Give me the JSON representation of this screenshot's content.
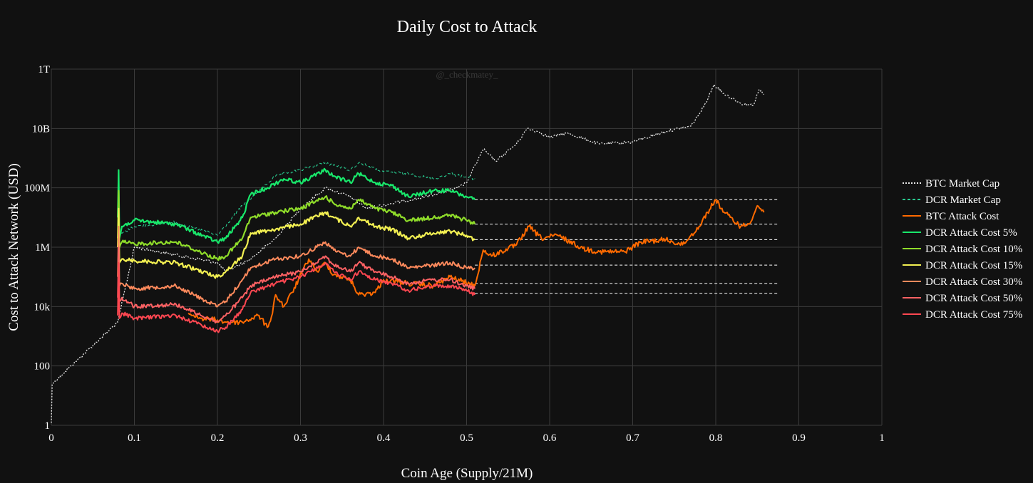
{
  "chart_data": {
    "type": "line",
    "title": "Daily Cost to Attack",
    "xlabel": "Coin Age (Supply/21M)",
    "ylabel": "Cost to Attack Network (USD)",
    "watermark": "@_checkmatey_",
    "xlim": [
      0,
      1
    ],
    "ylim": [
      1,
      1000000000000
    ],
    "y_scale": "log",
    "grid": true,
    "legend_position": "right",
    "x_ticks": [
      {
        "v": 0,
        "label": "0"
      },
      {
        "v": 0.1,
        "label": "0.1"
      },
      {
        "v": 0.2,
        "label": "0.2"
      },
      {
        "v": 0.3,
        "label": "0.3"
      },
      {
        "v": 0.4,
        "label": "0.4"
      },
      {
        "v": 0.5,
        "label": "0.5"
      },
      {
        "v": 0.6,
        "label": "0.6"
      },
      {
        "v": 0.7,
        "label": "0.7"
      },
      {
        "v": 0.8,
        "label": "0.8"
      },
      {
        "v": 0.9,
        "label": "0.9"
      },
      {
        "v": 1,
        "label": "1"
      }
    ],
    "y_ticks": [
      {
        "v": 1,
        "label": "1"
      },
      {
        "v": 100,
        "label": "100"
      },
      {
        "v": 10000,
        "label": "10k"
      },
      {
        "v": 1000000,
        "label": "1M"
      },
      {
        "v": 100000000,
        "label": "100M"
      },
      {
        "v": 10000000000,
        "label": "10B"
      },
      {
        "v": 1000000000000,
        "label": "1T"
      }
    ],
    "series": [
      {
        "name": "BTC Market Cap",
        "color": "#e8e8e8",
        "dash": "dot",
        "width": 1.3,
        "noise": 0.05,
        "points": [
          [
            0.0,
            1.2
          ],
          [
            0.001,
            25
          ],
          [
            0.08,
            3000
          ],
          [
            0.1,
            1000000
          ],
          [
            0.2,
            300000
          ],
          [
            0.21,
            150000
          ],
          [
            0.24,
            400000
          ],
          [
            0.27,
            2000000
          ],
          [
            0.3,
            20000000
          ],
          [
            0.33,
            100000000
          ],
          [
            0.36,
            50000000
          ],
          [
            0.38,
            20000000
          ],
          [
            0.41,
            30000000
          ],
          [
            0.45,
            50000000
          ],
          [
            0.49,
            100000000
          ],
          [
            0.5,
            150000000
          ],
          [
            0.52,
            2000000000
          ],
          [
            0.535,
            800000000
          ],
          [
            0.56,
            3000000000
          ],
          [
            0.573,
            10000000000
          ],
          [
            0.585,
            8000000000
          ],
          [
            0.6,
            5000000000
          ],
          [
            0.62,
            7000000000
          ],
          [
            0.66,
            3000000000
          ],
          [
            0.7,
            3500000000
          ],
          [
            0.74,
            8000000000
          ],
          [
            0.77,
            12000000000
          ],
          [
            0.785,
            50000000000
          ],
          [
            0.798,
            300000000000
          ],
          [
            0.81,
            150000000000
          ],
          [
            0.83,
            70000000000
          ],
          [
            0.845,
            60000000000
          ],
          [
            0.852,
            200000000000
          ],
          [
            0.858,
            140000000000
          ]
        ]
      },
      {
        "name": "DCR Market Cap",
        "color": "#29c98f",
        "dash": "dash",
        "width": 1.1,
        "noise": 0.05,
        "points": [
          [
            0.08,
            2500000
          ],
          [
            0.1,
            5000000
          ],
          [
            0.15,
            7000000
          ],
          [
            0.2,
            2500000
          ],
          [
            0.23,
            25000000
          ],
          [
            0.27,
            250000000
          ],
          [
            0.3,
            400000000
          ],
          [
            0.33,
            700000000
          ],
          [
            0.36,
            400000000
          ],
          [
            0.37,
            700000000
          ],
          [
            0.4,
            350000000
          ],
          [
            0.43,
            300000000
          ],
          [
            0.46,
            200000000
          ],
          [
            0.48,
            300000000
          ],
          [
            0.51,
            200000000
          ]
        ]
      },
      {
        "name": "BTC Attack Cost",
        "color": "#ff6a00",
        "dash": "solid",
        "width": 2.0,
        "noise": 0.09,
        "points": [
          [
            0.165,
            6000
          ],
          [
            0.18,
            4000
          ],
          [
            0.2,
            3500
          ],
          [
            0.21,
            3000
          ],
          [
            0.23,
            3000
          ],
          [
            0.25,
            5000
          ],
          [
            0.26,
            2000
          ],
          [
            0.265,
            4500
          ],
          [
            0.27,
            25000
          ],
          [
            0.28,
            10000
          ],
          [
            0.29,
            30000
          ],
          [
            0.31,
            400000
          ],
          [
            0.32,
            150000
          ],
          [
            0.33,
            300000
          ],
          [
            0.34,
            120000
          ],
          [
            0.36,
            80000
          ],
          [
            0.37,
            25000
          ],
          [
            0.39,
            30000
          ],
          [
            0.4,
            80000
          ],
          [
            0.43,
            60000
          ],
          [
            0.46,
            50000
          ],
          [
            0.48,
            100000
          ],
          [
            0.51,
            50000
          ],
          [
            0.52,
            800000
          ],
          [
            0.53,
            500000
          ],
          [
            0.55,
            900000
          ],
          [
            0.56,
            1200000
          ],
          [
            0.575,
            5000000
          ],
          [
            0.59,
            2000000
          ],
          [
            0.61,
            2500000
          ],
          [
            0.64,
            900000
          ],
          [
            0.66,
            700000
          ],
          [
            0.69,
            700000
          ],
          [
            0.71,
            1500000
          ],
          [
            0.74,
            1800000
          ],
          [
            0.76,
            1200000
          ],
          [
            0.78,
            5000000
          ],
          [
            0.79,
            15000000
          ],
          [
            0.8,
            40000000
          ],
          [
            0.81,
            15000000
          ],
          [
            0.83,
            5000000
          ],
          [
            0.84,
            6000000
          ],
          [
            0.85,
            25000000
          ],
          [
            0.858,
            15000000
          ]
        ]
      },
      {
        "name": "DCR Attack Cost 5%",
        "color": "#19e86b",
        "dash": "solid",
        "width": 2.2,
        "noise": 0.07,
        "points": [
          [
            0.08,
            10000000
          ],
          [
            0.081,
            400000000
          ],
          [
            0.082,
            2000000
          ],
          [
            0.085,
            5000000
          ],
          [
            0.1,
            8000000
          ],
          [
            0.15,
            6000000
          ],
          [
            0.2,
            1500000
          ],
          [
            0.21,
            2000000
          ],
          [
            0.23,
            10000000
          ],
          [
            0.24,
            60000000
          ],
          [
            0.26,
            100000000
          ],
          [
            0.28,
            200000000
          ],
          [
            0.3,
            150000000
          ],
          [
            0.33,
            400000000
          ],
          [
            0.34,
            250000000
          ],
          [
            0.36,
            150000000
          ],
          [
            0.37,
            300000000
          ],
          [
            0.39,
            150000000
          ],
          [
            0.41,
            120000000
          ],
          [
            0.43,
            50000000
          ],
          [
            0.46,
            80000000
          ],
          [
            0.48,
            80000000
          ],
          [
            0.5,
            50000000
          ],
          [
            0.51,
            40000000
          ]
        ]
      },
      {
        "name": "DCR Attack Cost 10%",
        "color": "#8fdc2a",
        "dash": "solid",
        "width": 2.2,
        "noise": 0.07,
        "points": [
          [
            0.08,
            2000000
          ],
          [
            0.081,
            80000000
          ],
          [
            0.082,
            1000000
          ],
          [
            0.085,
            1500000
          ],
          [
            0.1,
            1300000
          ],
          [
            0.15,
            1500000
          ],
          [
            0.2,
            400000
          ],
          [
            0.21,
            500000
          ],
          [
            0.23,
            2000000
          ],
          [
            0.24,
            10000000
          ],
          [
            0.27,
            15000000
          ],
          [
            0.3,
            20000000
          ],
          [
            0.33,
            50000000
          ],
          [
            0.34,
            30000000
          ],
          [
            0.36,
            20000000
          ],
          [
            0.37,
            40000000
          ],
          [
            0.39,
            20000000
          ],
          [
            0.41,
            15000000
          ],
          [
            0.43,
            8000000
          ],
          [
            0.46,
            10000000
          ],
          [
            0.48,
            12000000
          ],
          [
            0.5,
            8000000
          ],
          [
            0.51,
            6000000
          ]
        ]
      },
      {
        "name": "DCR Attack Cost 15%",
        "color": "#f3f052",
        "dash": "solid",
        "width": 2.2,
        "noise": 0.07,
        "points": [
          [
            0.08,
            1000000
          ],
          [
            0.081,
            20000000
          ],
          [
            0.082,
            300000
          ],
          [
            0.085,
            400000
          ],
          [
            0.1,
            350000
          ],
          [
            0.15,
            300000
          ],
          [
            0.2,
            100000
          ],
          [
            0.21,
            150000
          ],
          [
            0.23,
            500000
          ],
          [
            0.24,
            3000000
          ],
          [
            0.27,
            4000000
          ],
          [
            0.3,
            6000000
          ],
          [
            0.33,
            15000000
          ],
          [
            0.34,
            10000000
          ],
          [
            0.36,
            5000000
          ],
          [
            0.37,
            10000000
          ],
          [
            0.39,
            5000000
          ],
          [
            0.41,
            4000000
          ],
          [
            0.43,
            2000000
          ],
          [
            0.46,
            3000000
          ],
          [
            0.48,
            3500000
          ],
          [
            0.5,
            2500000
          ],
          [
            0.51,
            1800000
          ]
        ]
      },
      {
        "name": "DCR Attack Cost 30%",
        "color": "#ff8a5c",
        "dash": "solid",
        "width": 2.0,
        "noise": 0.07,
        "points": [
          [
            0.08,
            100000
          ],
          [
            0.081,
            5000000
          ],
          [
            0.082,
            50000
          ],
          [
            0.085,
            60000
          ],
          [
            0.1,
            40000
          ],
          [
            0.15,
            50000
          ],
          [
            0.2,
            10000
          ],
          [
            0.21,
            15000
          ],
          [
            0.23,
            80000
          ],
          [
            0.24,
            200000
          ],
          [
            0.27,
            400000
          ],
          [
            0.3,
            500000
          ],
          [
            0.33,
            1500000
          ],
          [
            0.34,
            800000
          ],
          [
            0.36,
            500000
          ],
          [
            0.37,
            1000000
          ],
          [
            0.39,
            500000
          ],
          [
            0.41,
            400000
          ],
          [
            0.43,
            200000
          ],
          [
            0.46,
            250000
          ],
          [
            0.48,
            300000
          ],
          [
            0.5,
            200000
          ],
          [
            0.51,
            200000
          ]
        ]
      },
      {
        "name": "DCR Attack Cost 50%",
        "color": "#ff6264",
        "dash": "solid",
        "width": 2.0,
        "noise": 0.07,
        "points": [
          [
            0.08,
            20000
          ],
          [
            0.081,
            1000000
          ],
          [
            0.082,
            15000
          ],
          [
            0.085,
            20000
          ],
          [
            0.1,
            10000
          ],
          [
            0.15,
            12000
          ],
          [
            0.2,
            3000
          ],
          [
            0.21,
            5000
          ],
          [
            0.23,
            20000
          ],
          [
            0.24,
            50000
          ],
          [
            0.27,
            100000
          ],
          [
            0.3,
            150000
          ],
          [
            0.33,
            500000
          ],
          [
            0.34,
            250000
          ],
          [
            0.36,
            150000
          ],
          [
            0.37,
            300000
          ],
          [
            0.39,
            150000
          ],
          [
            0.41,
            100000
          ],
          [
            0.43,
            60000
          ],
          [
            0.46,
            80000
          ],
          [
            0.48,
            80000
          ],
          [
            0.5,
            50000
          ],
          [
            0.51,
            40000
          ]
        ]
      },
      {
        "name": "DCR Attack Cost 75%",
        "color": "#ff4751",
        "dash": "solid",
        "width": 2.0,
        "noise": 0.07,
        "points": [
          [
            0.08,
            5000
          ],
          [
            0.081,
            300000
          ],
          [
            0.082,
            4000
          ],
          [
            0.085,
            6000
          ],
          [
            0.1,
            4000
          ],
          [
            0.15,
            5000
          ],
          [
            0.2,
            1500
          ],
          [
            0.21,
            2000
          ],
          [
            0.23,
            8000
          ],
          [
            0.24,
            30000
          ],
          [
            0.27,
            60000
          ],
          [
            0.3,
            100000
          ],
          [
            0.33,
            300000
          ],
          [
            0.34,
            150000
          ],
          [
            0.36,
            80000
          ],
          [
            0.37,
            150000
          ],
          [
            0.39,
            80000
          ],
          [
            0.41,
            60000
          ],
          [
            0.43,
            35000
          ],
          [
            0.46,
            50000
          ],
          [
            0.48,
            50000
          ],
          [
            0.5,
            35000
          ],
          [
            0.51,
            25000
          ]
        ]
      }
    ],
    "reference_lines": [
      {
        "y": 40000000,
        "x0": 0.51,
        "x1": 0.875
      },
      {
        "y": 6000000,
        "x0": 0.51,
        "x1": 0.875
      },
      {
        "y": 1800000,
        "x0": 0.51,
        "x1": 0.875
      },
      {
        "y": 250000,
        "x0": 0.51,
        "x1": 0.875
      },
      {
        "y": 60000,
        "x0": 0.51,
        "x1": 0.875
      },
      {
        "y": 28000,
        "x0": 0.51,
        "x1": 0.875
      }
    ]
  }
}
